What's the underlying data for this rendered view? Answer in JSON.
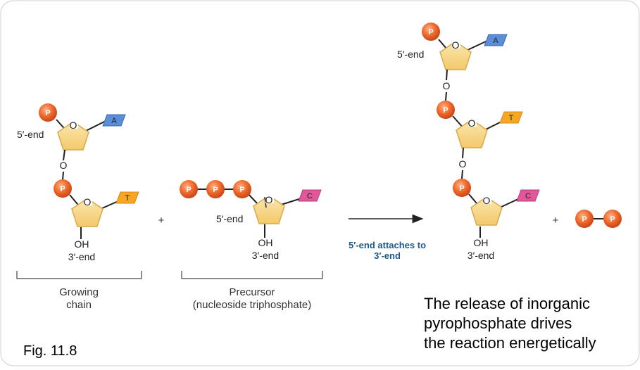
{
  "colors": {
    "phosphate": "#ef6a2a",
    "sugar": "#f7d88a",
    "base_A": "#5b8ed6",
    "base_T": "#f5a623",
    "base_C": "#e0589a"
  },
  "labels": {
    "phosphate": "P",
    "oxygen": "O",
    "hydroxyl": "OH",
    "five_end": "5′-end",
    "three_end": "3′-end",
    "plus": "+",
    "base_A": "A",
    "base_T": "T",
    "base_C": "C"
  },
  "captions": {
    "growing_1": "Growing",
    "growing_2": "chain",
    "precursor_1": "Precursor",
    "precursor_2": "(nucleoside triphosphate)"
  },
  "arrow_note": {
    "line1": "5′-end attaches to",
    "line2": "3′-end"
  },
  "note": {
    "line1": "The release of inorganic",
    "line2": "pyrophosphate drives",
    "line3": "the reaction energetically"
  },
  "figure_label": "Fig. 11.8"
}
